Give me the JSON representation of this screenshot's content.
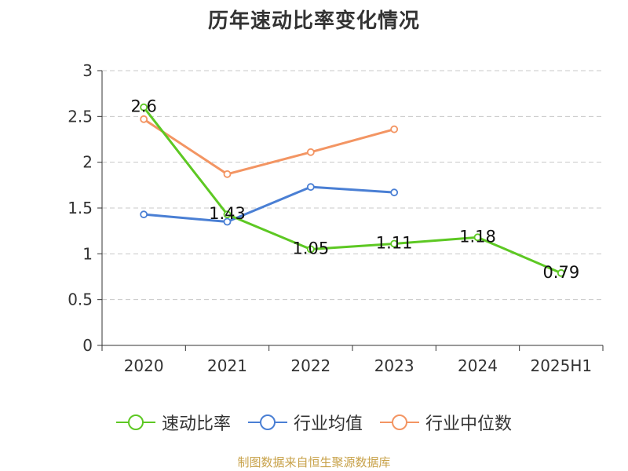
{
  "chart_data": {
    "type": "line",
    "title": "历年速动比率变化情况",
    "categories": [
      "2020",
      "2021",
      "2022",
      "2023",
      "2024",
      "2025H1"
    ],
    "ylim": [
      0,
      3
    ],
    "yticks": [
      "0",
      "0.5",
      "1",
      "1.5",
      "2",
      "2.5",
      "3"
    ],
    "grid": true,
    "legend_position": "bottom",
    "series": [
      {
        "name": "速动比率",
        "color": "#5dc823",
        "values": [
          2.6,
          1.43,
          1.05,
          1.11,
          1.18,
          0.79
        ],
        "labels": [
          "2.6",
          "1.43",
          "1.05",
          "1.11",
          "1.18",
          "0.79"
        ]
      },
      {
        "name": "行业均值",
        "color": "#4a7fd4",
        "values": [
          1.43,
          1.35,
          1.73,
          1.67,
          null,
          null
        ]
      },
      {
        "name": "行业中位数",
        "color": "#f39563",
        "values": [
          2.47,
          1.87,
          2.11,
          2.36,
          null,
          null
        ]
      }
    ]
  },
  "source": "制图数据来自恒生聚源数据库"
}
